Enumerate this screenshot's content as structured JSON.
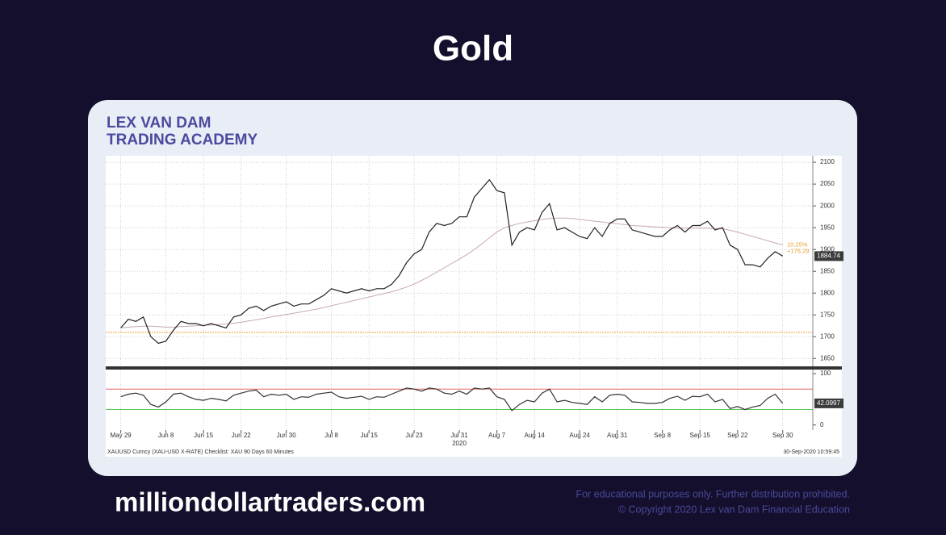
{
  "title": "Gold",
  "logo": {
    "line1": "LEX VAN DAM",
    "line2": "TRADING ACADEMY"
  },
  "chart_data": [
    {
      "type": "line",
      "xlim": [
        -2,
        92
      ],
      "ylim": [
        1632,
        2115
      ],
      "yticks": [
        1650,
        1700,
        1750,
        1800,
        1850,
        1900,
        1950,
        2000,
        2050,
        2100
      ],
      "grid": true,
      "x": [
        0,
        1,
        2,
        3,
        4,
        5,
        6,
        7,
        8,
        9,
        10,
        11,
        12,
        13,
        14,
        15,
        16,
        17,
        18,
        19,
        20,
        21,
        22,
        23,
        24,
        25,
        26,
        27,
        28,
        29,
        30,
        31,
        32,
        33,
        34,
        35,
        36,
        37,
        38,
        39,
        40,
        41,
        42,
        43,
        44,
        45,
        46,
        47,
        48,
        49,
        50,
        51,
        52,
        53,
        54,
        55,
        56,
        57,
        58,
        59,
        60,
        61,
        62,
        63,
        64,
        65,
        66,
        67,
        68,
        69,
        70,
        71,
        72,
        73,
        74,
        75,
        76,
        77,
        78,
        79,
        80,
        81,
        82,
        83,
        84,
        85,
        86,
        87,
        88
      ],
      "series": [
        {
          "color": "#222222",
          "values": [
            1720,
            1740,
            1735,
            1745,
            1700,
            1685,
            1690,
            1715,
            1735,
            1730,
            1730,
            1725,
            1730,
            1725,
            1720,
            1745,
            1750,
            1765,
            1770,
            1760,
            1770,
            1775,
            1780,
            1770,
            1775,
            1775,
            1785,
            1795,
            1810,
            1805,
            1800,
            1805,
            1810,
            1805,
            1810,
            1810,
            1820,
            1840,
            1870,
            1890,
            1900,
            1940,
            1960,
            1955,
            1960,
            1975,
            1975,
            2020,
            2040,
            2060,
            2035,
            2030,
            1910,
            1940,
            1950,
            1945,
            1985,
            2005,
            1945,
            1950,
            1940,
            1930,
            1925,
            1950,
            1930,
            1960,
            1970,
            1970,
            1945,
            1940,
            1935,
            1930,
            1930,
            1945,
            1955,
            1940,
            1955,
            1955,
            1965,
            1945,
            1950,
            1910,
            1900,
            1865,
            1865,
            1860,
            1880,
            1895,
            1885
          ]
        },
        {
          "color": "#c9a9b2",
          "values": [
            1720,
            1722,
            1723,
            1724,
            1724,
            1723,
            1722,
            1722,
            1723,
            1724,
            1725,
            1726,
            1727,
            1728,
            1729,
            1731,
            1733,
            1736,
            1739,
            1742,
            1745,
            1748,
            1751,
            1754,
            1757,
            1760,
            1763,
            1767,
            1771,
            1775,
            1779,
            1783,
            1787,
            1791,
            1795,
            1799,
            1803,
            1808,
            1814,
            1821,
            1829,
            1838,
            1848,
            1858,
            1868,
            1878,
            1888,
            1900,
            1913,
            1927,
            1940,
            1950,
            1955,
            1960,
            1963,
            1966,
            1969,
            1971,
            1972,
            1972,
            1971,
            1969,
            1967,
            1965,
            1963,
            1961,
            1959,
            1957,
            1955,
            1954,
            1953,
            1952,
            1951,
            1950,
            1949,
            1949,
            1949,
            1949,
            1949,
            1948,
            1947,
            1944,
            1940,
            1935,
            1930,
            1925,
            1920,
            1915,
            1911
          ]
        }
      ],
      "hline": {
        "value": 1710,
        "color": "#f0a030"
      },
      "annotations": [
        "10.25%",
        "+175.29"
      ],
      "annotation_color": "#e8a030",
      "last_label": {
        "value": 1884.74,
        "label": "1884.74"
      }
    },
    {
      "type": "line",
      "xlim": [
        -2,
        92
      ],
      "ylim": [
        -10,
        108
      ],
      "yticks": [
        0,
        100
      ],
      "xticks": [
        {
          "value": 0,
          "label": "May 29"
        },
        {
          "value": 6,
          "label": "Jun 8"
        },
        {
          "value": 11,
          "label": "Jun 15"
        },
        {
          "value": 16,
          "label": "Jun 22"
        },
        {
          "value": 22,
          "label": "Jun 30"
        },
        {
          "value": 28,
          "label": "Jul 8"
        },
        {
          "value": 33,
          "label": "Jul 15"
        },
        {
          "value": 39,
          "label": "Jul 23"
        },
        {
          "value": 45,
          "label": "Jul 31"
        },
        {
          "value": 50,
          "label": "Aug 7"
        },
        {
          "value": 55,
          "label": "Aug 14"
        },
        {
          "value": 61,
          "label": "Aug 24"
        },
        {
          "value": 66,
          "label": "Aug 31"
        },
        {
          "value": 72,
          "label": "Sep 8"
        },
        {
          "value": 77,
          "label": "Sep 15"
        },
        {
          "value": 82,
          "label": "Sep 22"
        },
        {
          "value": 88,
          "label": "Sep 30"
        }
      ],
      "year_label": "2020",
      "series": [
        {
          "color": "#333333",
          "values": [
            55,
            60,
            62,
            58,
            40,
            35,
            45,
            60,
            62,
            55,
            50,
            48,
            52,
            50,
            47,
            58,
            62,
            66,
            68,
            55,
            60,
            58,
            60,
            50,
            55,
            54,
            60,
            62,
            64,
            55,
            52,
            54,
            56,
            50,
            55,
            54,
            60,
            66,
            72,
            70,
            66,
            72,
            70,
            62,
            60,
            66,
            60,
            72,
            70,
            72,
            55,
            50,
            28,
            40,
            48,
            45,
            62,
            70,
            45,
            48,
            44,
            42,
            40,
            55,
            45,
            58,
            60,
            58,
            45,
            44,
            42,
            42,
            44,
            52,
            56,
            48,
            56,
            55,
            60,
            45,
            50,
            32,
            36,
            30,
            35,
            38,
            52,
            60,
            42
          ]
        }
      ],
      "levels": [
        {
          "value": 70,
          "color": "#e05050"
        },
        {
          "value": 30,
          "color": "#3cc03c"
        }
      ],
      "last_label": {
        "value": 42.0997,
        "label": "42.0997"
      },
      "source": "XAUUSD Curncy (XAU-USD X-RATE) Checklist: XAU 90 Days 60 Minutes",
      "timestamp": "30-Sep-2020 10:59:45"
    }
  ],
  "footer": {
    "site": "milliondollartraders.com",
    "disclaimer1": "For educational purposes only. Further distribution prohibited.",
    "disclaimer2": "© Copyright 2020 Lex van Dam Financial Education"
  }
}
